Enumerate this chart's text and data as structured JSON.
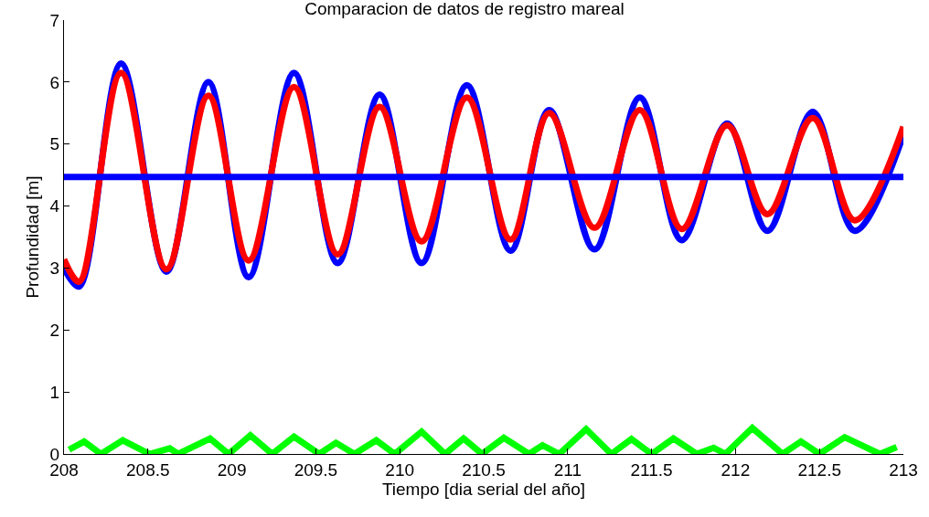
{
  "chart_data": {
    "type": "line",
    "title": "Comparacion de datos de registro mareal",
    "xlabel": "Tiempo [dia serial del año]",
    "ylabel": "Profundidad [m]",
    "xlim": [
      208,
      213
    ],
    "ylim": [
      0,
      7
    ],
    "xticks": [
      208,
      208.5,
      209,
      209.5,
      210,
      210.5,
      211,
      211.5,
      212,
      212.5,
      213
    ],
    "yticks": [
      0,
      1,
      2,
      3,
      4,
      5,
      6,
      7
    ],
    "line_style": "solid",
    "series": [
      {
        "color": "#0000ff",
        "x": [
          208.0,
          208.09,
          208.34,
          208.61,
          208.86,
          209.1,
          209.37,
          209.63,
          209.88,
          210.13,
          210.4,
          210.66,
          210.89,
          211.16,
          211.43,
          211.68,
          211.95,
          212.19,
          212.46,
          212.71,
          213.0
        ],
        "values": [
          3.0,
          2.7,
          6.3,
          2.94,
          6.0,
          2.85,
          6.15,
          3.08,
          5.8,
          3.08,
          5.95,
          3.28,
          5.55,
          3.3,
          5.75,
          3.45,
          5.33,
          3.6,
          5.52,
          3.6,
          5.15
        ]
      },
      {
        "color": "#ff0000",
        "x": [
          208.0,
          208.09,
          208.34,
          208.61,
          208.86,
          209.1,
          209.37,
          209.63,
          209.88,
          210.13,
          210.4,
          210.66,
          210.89,
          211.16,
          211.43,
          211.68,
          211.95,
          212.19,
          212.46,
          212.71,
          213.0
        ],
        "values": [
          3.14,
          2.78,
          6.15,
          2.98,
          5.78,
          3.12,
          5.92,
          3.22,
          5.6,
          3.43,
          5.75,
          3.46,
          5.5,
          3.65,
          5.55,
          3.63,
          5.3,
          3.87,
          5.42,
          3.77,
          5.28
        ]
      },
      {
        "color": "#00ff00",
        "x": [
          208.03,
          208.12,
          208.22,
          208.35,
          208.51,
          208.63,
          208.68,
          208.87,
          208.98,
          209.11,
          209.24,
          209.37,
          209.52,
          209.62,
          209.73,
          209.86,
          209.97,
          210.13,
          210.27,
          210.38,
          210.49,
          210.62,
          210.77,
          210.85,
          210.95,
          211.11,
          211.26,
          211.38,
          211.5,
          211.63,
          211.77,
          211.87,
          211.94,
          212.1,
          212.28,
          212.39,
          212.5,
          212.65,
          212.86,
          212.96
        ],
        "values": [
          0.07,
          0.2,
          0.0,
          0.22,
          0.0,
          0.09,
          0.0,
          0.25,
          0.0,
          0.3,
          0.0,
          0.28,
          0.0,
          0.18,
          0.0,
          0.22,
          0.0,
          0.36,
          0.0,
          0.25,
          0.0,
          0.26,
          0.0,
          0.14,
          0.0,
          0.4,
          0.0,
          0.24,
          0.0,
          0.25,
          0.0,
          0.1,
          0.0,
          0.42,
          0.0,
          0.2,
          0.0,
          0.27,
          0.0,
          0.11
        ]
      }
    ],
    "ref_lines": [
      {
        "axis": "y",
        "value": 4.47,
        "color": "#0000ff"
      }
    ]
  }
}
